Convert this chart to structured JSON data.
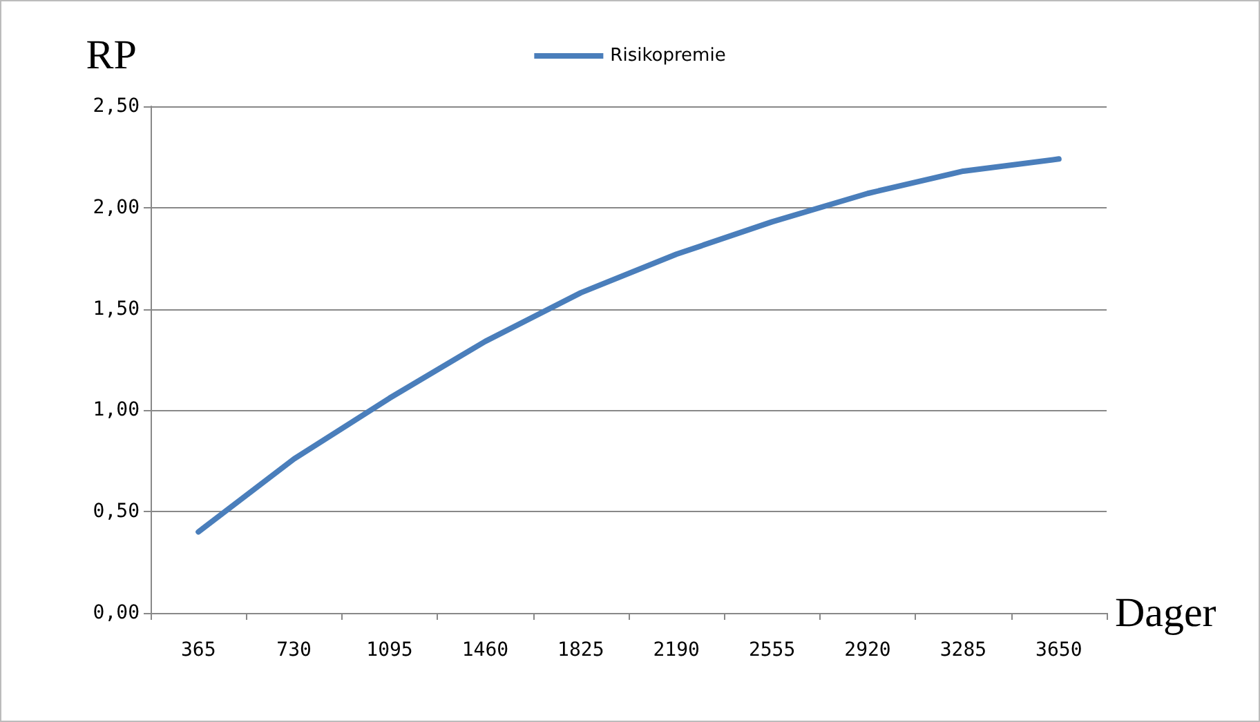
{
  "chart_data": {
    "type": "line",
    "xlabel": "Dager",
    "ylabel": "RP",
    "categories": [
      "365",
      "730",
      "1095",
      "1460",
      "1825",
      "2190",
      "2555",
      "2920",
      "3285",
      "3650"
    ],
    "series": [
      {
        "name": "Risikopremie",
        "color": "#4a7ebb",
        "values": [
          0.4,
          0.76,
          1.06,
          1.34,
          1.58,
          1.77,
          1.93,
          2.07,
          2.18,
          2.24
        ]
      }
    ],
    "ylim": [
      0,
      2.5
    ],
    "yticks": [
      {
        "value": 0,
        "label": "0,00"
      },
      {
        "value": 0.5,
        "label": "0,50"
      },
      {
        "value": 1,
        "label": "1,00"
      },
      {
        "value": 1.5,
        "label": "1,50"
      },
      {
        "value": 2,
        "label": "2,00"
      },
      {
        "value": 2.5,
        "label": "2,50"
      }
    ],
    "grid": "y",
    "legend": "top",
    "marker": "none",
    "line_style": "solid"
  }
}
